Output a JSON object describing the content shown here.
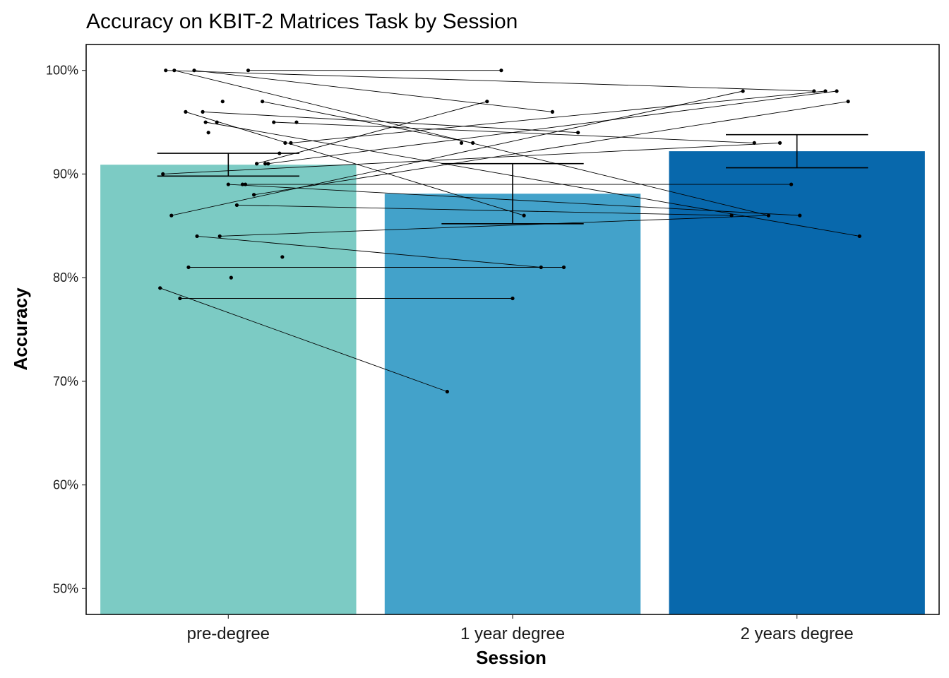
{
  "chart_data": {
    "type": "bar",
    "title": "Accuracy on KBIT-2 Matrices Task by Session",
    "xlabel": "Session",
    "ylabel": "Accuracy",
    "ylim": [
      0.475,
      1.025
    ],
    "yticks": [
      0.5,
      0.6,
      0.7,
      0.8,
      0.9,
      1.0
    ],
    "ytick_labels": [
      "50%",
      "60%",
      "70%",
      "80%",
      "90%",
      "100%"
    ],
    "grid": false,
    "legend": "none",
    "categories": [
      "pre-degree",
      "1 year degree",
      "2 years degree"
    ],
    "values": [
      0.909,
      0.881,
      0.922
    ],
    "colors": [
      "#7CCBC4",
      "#43A2CA",
      "#0868AC"
    ],
    "error_bars": [
      {
        "low": 0.898,
        "high": 0.92
      },
      {
        "low": 0.852,
        "high": 0.91
      },
      {
        "low": 0.906,
        "high": 0.938
      }
    ],
    "points": [
      {
        "session": 0,
        "jitter": -0.22,
        "y": 1.0
      },
      {
        "session": 0,
        "jitter": -0.19,
        "y": 1.0
      },
      {
        "session": 0,
        "jitter": -0.12,
        "y": 1.0
      },
      {
        "session": 0,
        "jitter": 0.07,
        "y": 1.0
      },
      {
        "session": 0,
        "jitter": -0.02,
        "y": 0.97
      },
      {
        "session": 0,
        "jitter": 0.12,
        "y": 0.97
      },
      {
        "session": 0,
        "jitter": -0.15,
        "y": 0.96
      },
      {
        "session": 0,
        "jitter": -0.09,
        "y": 0.96
      },
      {
        "session": 0,
        "jitter": -0.08,
        "y": 0.95
      },
      {
        "session": 0,
        "jitter": -0.04,
        "y": 0.95
      },
      {
        "session": 0,
        "jitter": 0.16,
        "y": 0.95
      },
      {
        "session": 0,
        "jitter": 0.24,
        "y": 0.95
      },
      {
        "session": 0,
        "jitter": -0.07,
        "y": 0.94
      },
      {
        "session": 0,
        "jitter": 0.2,
        "y": 0.93
      },
      {
        "session": 0,
        "jitter": 0.22,
        "y": 0.93
      },
      {
        "session": 0,
        "jitter": 0.18,
        "y": 0.92
      },
      {
        "session": 0,
        "jitter": 0.1,
        "y": 0.91
      },
      {
        "session": 0,
        "jitter": 0.13,
        "y": 0.91
      },
      {
        "session": 0,
        "jitter": 0.14,
        "y": 0.91
      },
      {
        "session": 0,
        "jitter": -0.23,
        "y": 0.9
      },
      {
        "session": 0,
        "jitter": 0.0,
        "y": 0.89
      },
      {
        "session": 0,
        "jitter": 0.05,
        "y": 0.89
      },
      {
        "session": 0,
        "jitter": 0.06,
        "y": 0.89
      },
      {
        "session": 0,
        "jitter": 0.09,
        "y": 0.88
      },
      {
        "session": 0,
        "jitter": 0.03,
        "y": 0.87
      },
      {
        "session": 0,
        "jitter": -0.2,
        "y": 0.86
      },
      {
        "session": 0,
        "jitter": -0.11,
        "y": 0.84
      },
      {
        "session": 0,
        "jitter": -0.03,
        "y": 0.84
      },
      {
        "session": 0,
        "jitter": 0.19,
        "y": 0.82
      },
      {
        "session": 0,
        "jitter": -0.14,
        "y": 0.81
      },
      {
        "session": 0,
        "jitter": 0.01,
        "y": 0.8
      },
      {
        "session": 0,
        "jitter": -0.24,
        "y": 0.79
      },
      {
        "session": 0,
        "jitter": -0.17,
        "y": 0.78
      },
      {
        "session": 1,
        "jitter": -0.04,
        "y": 1.0
      },
      {
        "session": 1,
        "jitter": -0.09,
        "y": 0.97
      },
      {
        "session": 1,
        "jitter": 0.14,
        "y": 0.96
      },
      {
        "session": 1,
        "jitter": 0.23,
        "y": 0.94
      },
      {
        "session": 1,
        "jitter": -0.18,
        "y": 0.93
      },
      {
        "session": 1,
        "jitter": -0.14,
        "y": 0.93
      },
      {
        "session": 1,
        "jitter": 0.04,
        "y": 0.86
      },
      {
        "session": 1,
        "jitter": 0.1,
        "y": 0.81
      },
      {
        "session": 1,
        "jitter": 0.18,
        "y": 0.81
      },
      {
        "session": 1,
        "jitter": 0.0,
        "y": 0.78
      },
      {
        "session": 1,
        "jitter": -0.23,
        "y": 0.69
      },
      {
        "session": 2,
        "jitter": -0.19,
        "y": 0.98
      },
      {
        "session": 2,
        "jitter": 0.06,
        "y": 0.98
      },
      {
        "session": 2,
        "jitter": 0.1,
        "y": 0.98
      },
      {
        "session": 2,
        "jitter": 0.14,
        "y": 0.98
      },
      {
        "session": 2,
        "jitter": 0.18,
        "y": 0.97
      },
      {
        "session": 2,
        "jitter": -0.15,
        "y": 0.93
      },
      {
        "session": 2,
        "jitter": -0.06,
        "y": 0.93
      },
      {
        "session": 2,
        "jitter": -0.02,
        "y": 0.89
      },
      {
        "session": 2,
        "jitter": -0.23,
        "y": 0.86
      },
      {
        "session": 2,
        "jitter": -0.1,
        "y": 0.86
      },
      {
        "session": 2,
        "jitter": 0.01,
        "y": 0.86
      },
      {
        "session": 2,
        "jitter": 0.22,
        "y": 0.84
      }
    ],
    "subject_lines": [
      [
        {
          "session": 0,
          "jitter": -0.22,
          "y": 1.0
        },
        {
          "session": 2,
          "jitter": 0.06,
          "y": 0.98
        }
      ],
      [
        {
          "session": 0,
          "jitter": -0.19,
          "y": 1.0
        },
        {
          "session": 2,
          "jitter": -0.1,
          "y": 0.86
        }
      ],
      [
        {
          "session": 0,
          "jitter": -0.12,
          "y": 1.0
        },
        {
          "session": 1,
          "jitter": 0.14,
          "y": 0.96
        }
      ],
      [
        {
          "session": 0,
          "jitter": 0.07,
          "y": 1.0
        },
        {
          "session": 1,
          "jitter": -0.04,
          "y": 1.0
        }
      ],
      [
        {
          "session": 0,
          "jitter": 0.12,
          "y": 0.97
        },
        {
          "session": 1,
          "jitter": -0.14,
          "y": 0.93
        }
      ],
      [
        {
          "session": 0,
          "jitter": -0.15,
          "y": 0.96
        },
        {
          "session": 1,
          "jitter": 0.04,
          "y": 0.86
        }
      ],
      [
        {
          "session": 0,
          "jitter": -0.09,
          "y": 0.96
        },
        {
          "session": 1,
          "jitter": 0.23,
          "y": 0.94
        }
      ],
      [
        {
          "session": 0,
          "jitter": -0.08,
          "y": 0.95
        },
        {
          "session": 2,
          "jitter": 0.22,
          "y": 0.84
        }
      ],
      [
        {
          "session": 0,
          "jitter": 0.16,
          "y": 0.95
        },
        {
          "session": 2,
          "jitter": -0.15,
          "y": 0.93
        }
      ],
      [
        {
          "session": 0,
          "jitter": 0.22,
          "y": 0.93
        },
        {
          "session": 2,
          "jitter": 0.1,
          "y": 0.98
        }
      ],
      [
        {
          "session": 0,
          "jitter": 0.1,
          "y": 0.91
        },
        {
          "session": 1,
          "jitter": -0.09,
          "y": 0.97
        }
      ],
      [
        {
          "session": 0,
          "jitter": 0.14,
          "y": 0.91
        },
        {
          "session": 2,
          "jitter": 0.14,
          "y": 0.98
        }
      ],
      [
        {
          "session": 0,
          "jitter": -0.23,
          "y": 0.9
        },
        {
          "session": 2,
          "jitter": -0.06,
          "y": 0.93
        }
      ],
      [
        {
          "session": 0,
          "jitter": 0.0,
          "y": 0.89
        },
        {
          "session": 2,
          "jitter": 0.01,
          "y": 0.86
        }
      ],
      [
        {
          "session": 0,
          "jitter": 0.06,
          "y": 0.89
        },
        {
          "session": 2,
          "jitter": -0.02,
          "y": 0.89
        }
      ],
      [
        {
          "session": 0,
          "jitter": 0.09,
          "y": 0.88
        },
        {
          "session": 2,
          "jitter": 0.18,
          "y": 0.97
        }
      ],
      [
        {
          "session": 0,
          "jitter": 0.03,
          "y": 0.87
        },
        {
          "session": 2,
          "jitter": -0.23,
          "y": 0.86
        }
      ],
      [
        {
          "session": 0,
          "jitter": -0.2,
          "y": 0.86
        },
        {
          "session": 2,
          "jitter": -0.19,
          "y": 0.98
        }
      ],
      [
        {
          "session": 0,
          "jitter": -0.11,
          "y": 0.84
        },
        {
          "session": 1,
          "jitter": 0.1,
          "y": 0.81
        }
      ],
      [
        {
          "session": 0,
          "jitter": -0.03,
          "y": 0.84
        },
        {
          "session": 2,
          "jitter": -0.1,
          "y": 0.86
        }
      ],
      [
        {
          "session": 0,
          "jitter": -0.14,
          "y": 0.81
        },
        {
          "session": 1,
          "jitter": 0.18,
          "y": 0.81
        }
      ],
      [
        {
          "session": 0,
          "jitter": -0.17,
          "y": 0.78
        },
        {
          "session": 1,
          "jitter": 0.0,
          "y": 0.78
        }
      ],
      [
        {
          "session": 0,
          "jitter": -0.24,
          "y": 0.79
        },
        {
          "session": 1,
          "jitter": -0.23,
          "y": 0.69
        }
      ]
    ]
  }
}
